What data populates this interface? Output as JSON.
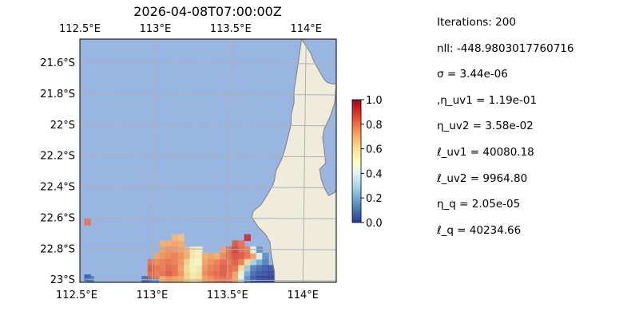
{
  "chart_data": {
    "type": "heatmap",
    "title": "2026-04-08T07:00:00Z",
    "x_ticks": [
      "112.5°E",
      "113°E",
      "113.5°E",
      "114°E"
    ],
    "x_tick_values": [
      112.5,
      113.0,
      113.5,
      114.0
    ],
    "y_ticks": [
      "21.6°S",
      "21.8°S",
      "22°S",
      "22.2°S",
      "22.4°S",
      "22.6°S",
      "22.8°S",
      "23°S"
    ],
    "y_tick_values": [
      -21.6,
      -21.8,
      -22.0,
      -22.2,
      -22.4,
      -22.6,
      -22.8,
      -23.0
    ],
    "xlim": [
      112.5,
      114.2
    ],
    "ylim": [
      -23.02,
      -21.45
    ],
    "grid": true,
    "colorbar": {
      "range": [
        0.0,
        1.0
      ],
      "ticks": [
        "1.0",
        "0.8",
        "0.6",
        "0.4",
        "0.2",
        "0.0"
      ],
      "tick_values": [
        1.0,
        0.8,
        0.6,
        0.4,
        0.2,
        0.0
      ],
      "stops": [
        "#313695",
        "#4575b4",
        "#74add1",
        "#abd9e9",
        "#e0f3f8",
        "#ffffbf",
        "#fee090",
        "#fdae61",
        "#f46d43",
        "#d73027",
        "#a50026"
      ]
    },
    "colors": {
      "ocean": "#99b6e2",
      "land": "#efecdb",
      "coast": "#8a8a8a",
      "grid": "#b0b0b0"
    },
    "coastline": [
      [
        113.97,
        -21.45
      ],
      [
        114.03,
        -21.54
      ],
      [
        114.05,
        -21.59
      ],
      [
        114.09,
        -21.66
      ],
      [
        114.12,
        -21.71
      ],
      [
        114.14,
        -21.73
      ],
      [
        114.18,
        -21.74
      ],
      [
        114.2,
        -21.74
      ],
      [
        114.19,
        -21.86
      ],
      [
        114.16,
        -21.95
      ],
      [
        114.12,
        -22.03
      ],
      [
        114.11,
        -22.09
      ],
      [
        114.12,
        -22.16
      ],
      [
        114.13,
        -22.25
      ],
      [
        114.11,
        -22.27
      ],
      [
        114.09,
        -22.29
      ],
      [
        114.1,
        -22.35
      ],
      [
        114.12,
        -22.41
      ],
      [
        114.15,
        -22.46
      ],
      [
        114.19,
        -22.44
      ],
      [
        114.2,
        -22.42
      ],
      [
        114.2,
        -23.02
      ],
      [
        113.79,
        -23.02
      ],
      [
        113.79,
        -22.95
      ],
      [
        113.77,
        -22.85
      ],
      [
        113.76,
        -22.76
      ],
      [
        113.73,
        -22.71
      ],
      [
        113.68,
        -22.66
      ],
      [
        113.64,
        -22.6
      ],
      [
        113.65,
        -22.56
      ],
      [
        113.7,
        -22.52
      ],
      [
        113.74,
        -22.46
      ],
      [
        113.78,
        -22.39
      ],
      [
        113.79,
        -22.36
      ],
      [
        113.8,
        -22.3
      ],
      [
        113.84,
        -22.22
      ],
      [
        113.86,
        -22.16
      ],
      [
        113.88,
        -22.08
      ],
      [
        113.9,
        -22.0
      ],
      [
        113.9,
        -21.94
      ],
      [
        113.92,
        -21.86
      ],
      [
        113.92,
        -21.78
      ],
      [
        113.93,
        -21.72
      ]
    ],
    "cells": [
      [
        112.55,
        -22.63,
        0.8
      ],
      [
        112.55,
        -22.99,
        0.05
      ],
      [
        112.57,
        -23.0,
        0.1
      ],
      [
        112.97,
        -23.0,
        0.1
      ],
      [
        113.0,
        -23.0,
        0.15
      ],
      [
        112.93,
        -23.0,
        0.08
      ],
      [
        113.05,
        -22.77,
        0.7
      ],
      [
        113.09,
        -22.77,
        0.7
      ],
      [
        113.13,
        -22.77,
        0.72
      ],
      [
        113.17,
        -22.77,
        0.7
      ],
      [
        113.13,
        -22.73,
        0.68
      ],
      [
        113.17,
        -22.73,
        0.66
      ],
      [
        113.05,
        -22.81,
        0.72
      ],
      [
        113.09,
        -22.81,
        0.75
      ],
      [
        113.13,
        -22.81,
        0.74
      ],
      [
        113.17,
        -22.81,
        0.72
      ],
      [
        113.21,
        -22.81,
        0.68
      ],
      [
        113.25,
        -22.81,
        0.55
      ],
      [
        113.29,
        -22.81,
        0.52
      ],
      [
        113.01,
        -22.85,
        0.72
      ],
      [
        113.05,
        -22.85,
        0.74
      ],
      [
        113.09,
        -22.85,
        0.76
      ],
      [
        113.13,
        -22.85,
        0.78
      ],
      [
        113.17,
        -22.85,
        0.75
      ],
      [
        113.21,
        -22.85,
        0.7
      ],
      [
        113.25,
        -22.85,
        0.55
      ],
      [
        113.29,
        -22.85,
        0.52
      ],
      [
        113.33,
        -22.85,
        0.7
      ],
      [
        113.37,
        -22.85,
        0.72
      ],
      [
        112.97,
        -22.89,
        0.8
      ],
      [
        113.01,
        -22.89,
        0.76
      ],
      [
        113.05,
        -22.89,
        0.78
      ],
      [
        113.09,
        -22.89,
        0.8
      ],
      [
        113.13,
        -22.89,
        0.78
      ],
      [
        113.17,
        -22.89,
        0.74
      ],
      [
        113.21,
        -22.89,
        0.62
      ],
      [
        113.25,
        -22.89,
        0.52
      ],
      [
        113.29,
        -22.89,
        0.5
      ],
      [
        113.33,
        -22.89,
        0.72
      ],
      [
        113.37,
        -22.89,
        0.75
      ],
      [
        113.41,
        -22.89,
        0.78
      ],
      [
        113.45,
        -22.89,
        0.82
      ],
      [
        112.97,
        -22.93,
        0.85
      ],
      [
        113.01,
        -22.93,
        0.8
      ],
      [
        113.05,
        -22.93,
        0.78
      ],
      [
        113.09,
        -22.93,
        0.82
      ],
      [
        113.13,
        -22.93,
        0.8
      ],
      [
        113.17,
        -22.93,
        0.72
      ],
      [
        113.21,
        -22.93,
        0.6
      ],
      [
        113.25,
        -22.93,
        0.52
      ],
      [
        113.29,
        -22.93,
        0.55
      ],
      [
        113.33,
        -22.93,
        0.74
      ],
      [
        113.37,
        -22.93,
        0.78
      ],
      [
        113.41,
        -22.93,
        0.8
      ],
      [
        113.45,
        -22.93,
        0.84
      ],
      [
        112.97,
        -22.97,
        0.82
      ],
      [
        113.01,
        -22.97,
        0.78
      ],
      [
        113.05,
        -22.97,
        0.8
      ],
      [
        113.09,
        -22.97,
        0.84
      ],
      [
        113.13,
        -22.97,
        0.8
      ],
      [
        113.17,
        -22.97,
        0.74
      ],
      [
        113.21,
        -22.97,
        0.62
      ],
      [
        113.25,
        -22.97,
        0.55
      ],
      [
        113.29,
        -22.97,
        0.58
      ],
      [
        113.33,
        -22.97,
        0.76
      ],
      [
        113.37,
        -22.97,
        0.8
      ],
      [
        113.41,
        -22.97,
        0.82
      ],
      [
        113.45,
        -22.97,
        0.84
      ],
      [
        113.49,
        -22.97,
        0.8
      ],
      [
        113.05,
        -23.0,
        0.7
      ],
      [
        113.09,
        -23.0,
        0.74
      ],
      [
        113.13,
        -23.0,
        0.72
      ],
      [
        113.17,
        -23.0,
        0.7
      ],
      [
        113.21,
        -23.0,
        0.62
      ],
      [
        113.25,
        -23.0,
        0.56
      ],
      [
        113.29,
        -23.0,
        0.6
      ],
      [
        113.33,
        -23.0,
        0.72
      ],
      [
        113.37,
        -23.0,
        0.75
      ],
      [
        113.41,
        -23.0,
        0.78
      ],
      [
        113.45,
        -23.0,
        0.8
      ],
      [
        113.49,
        -23.0,
        0.78
      ],
      [
        113.45,
        -22.81,
        0.72
      ],
      [
        113.49,
        -22.81,
        0.82
      ],
      [
        113.53,
        -22.81,
        0.88
      ],
      [
        113.57,
        -22.81,
        0.82
      ],
      [
        113.61,
        -22.81,
        0.78
      ],
      [
        113.53,
        -22.77,
        0.85
      ],
      [
        113.57,
        -22.77,
        0.8
      ],
      [
        113.61,
        -22.73,
        0.92
      ],
      [
        113.41,
        -22.85,
        0.7
      ],
      [
        113.45,
        -22.85,
        0.76
      ],
      [
        113.49,
        -22.85,
        0.82
      ],
      [
        113.53,
        -22.85,
        0.86
      ],
      [
        113.57,
        -22.85,
        0.84
      ],
      [
        113.61,
        -22.85,
        0.8
      ],
      [
        113.65,
        -22.85,
        0.72
      ],
      [
        113.49,
        -22.89,
        0.8
      ],
      [
        113.53,
        -22.89,
        0.84
      ],
      [
        113.57,
        -22.89,
        0.78
      ],
      [
        113.61,
        -22.89,
        0.6
      ],
      [
        113.65,
        -22.89,
        0.3
      ],
      [
        113.69,
        -22.89,
        0.2
      ],
      [
        113.73,
        -22.89,
        0.12
      ],
      [
        113.49,
        -22.93,
        0.82
      ],
      [
        113.53,
        -22.93,
        0.8
      ],
      [
        113.57,
        -22.93,
        0.58
      ],
      [
        113.61,
        -22.93,
        0.28
      ],
      [
        113.65,
        -22.93,
        0.12
      ],
      [
        113.69,
        -22.93,
        0.08
      ],
      [
        113.73,
        -22.93,
        0.05
      ],
      [
        113.77,
        -22.93,
        0.04
      ],
      [
        113.53,
        -22.97,
        0.72
      ],
      [
        113.57,
        -22.97,
        0.45
      ],
      [
        113.61,
        -22.97,
        0.2
      ],
      [
        113.65,
        -22.97,
        0.08
      ],
      [
        113.69,
        -22.97,
        0.04
      ],
      [
        113.73,
        -22.97,
        0.03
      ],
      [
        113.77,
        -22.97,
        0.02
      ],
      [
        113.53,
        -23.0,
        0.7
      ],
      [
        113.57,
        -23.0,
        0.4
      ],
      [
        113.61,
        -23.0,
        0.15
      ],
      [
        113.65,
        -23.0,
        0.06
      ],
      [
        113.69,
        -23.0,
        0.03
      ],
      [
        113.73,
        -23.0,
        0.02
      ],
      [
        113.77,
        -23.0,
        0.02
      ],
      [
        113.65,
        -22.81,
        0.45
      ],
      [
        113.69,
        -22.81,
        0.15
      ],
      [
        113.69,
        -22.85,
        0.4
      ],
      [
        113.73,
        -22.85,
        0.15
      ]
    ]
  },
  "stats": [
    "Iterations: 200",
    "nll: -448.9803017760716",
    "σ = 3.44e-06",
    ",η_uv1 = 1.19e-01",
    "η_uv2 = 3.58e-02",
    "ℓ_uv1 = 40080.18",
    "ℓ_uv2 = 9964.80",
    "η_q = 2.05e-05",
    "ℓ_q = 40234.66"
  ]
}
